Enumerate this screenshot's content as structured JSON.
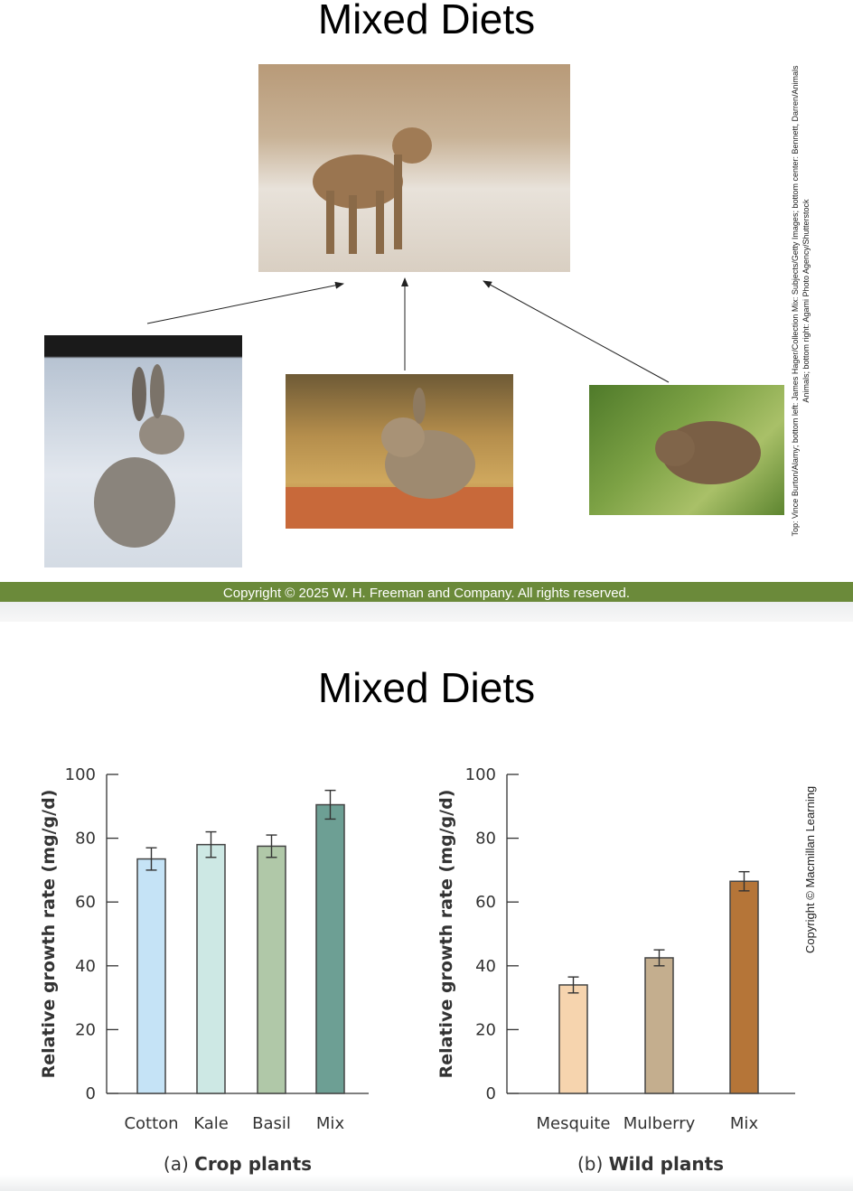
{
  "slide1": {
    "title": "Mixed Diets",
    "photo_credit": "Top: Vince Burton/Alamy; bottom left: James Hager/Collection Mix: Subjects/Getty Images; bottom center: Bennett, Darren/Animals Animals; bottom right: Agami Photo Agency/Shutterstock",
    "copyright": "Copyright © 2025 W. H. Freeman and Company. All rights reserved.",
    "photos": [
      "coyote",
      "jackrabbit",
      "cottontail-rabbit",
      "vole"
    ]
  },
  "slide2": {
    "title": "Mixed Diets",
    "side_copyright": "Copyright © Macmillan Learning"
  },
  "chart_data": [
    {
      "type": "bar",
      "title": "Crop plants",
      "panel": "(a)",
      "ylabel": "Relative growth rate (mg/g/d)",
      "ylim": [
        0,
        100
      ],
      "yticks": [
        0,
        20,
        40,
        60,
        80,
        100
      ],
      "categories": [
        "Cotton",
        "Kale",
        "Basil",
        "Mix"
      ],
      "values": [
        73.5,
        78,
        77.5,
        90.5
      ],
      "errors": [
        3.5,
        4,
        3.5,
        4.5
      ],
      "colors": [
        "#c5e3f6",
        "#cde8e4",
        "#b0c8a8",
        "#6d9f94"
      ]
    },
    {
      "type": "bar",
      "title": "Wild plants",
      "panel": "(b)",
      "ylabel": "Relative growth rate (mg/g/d)",
      "ylim": [
        0,
        100
      ],
      "yticks": [
        0,
        20,
        40,
        60,
        80,
        100
      ],
      "categories": [
        "Mesquite",
        "Mulberry",
        "Mix"
      ],
      "values": [
        34,
        42.5,
        66.5
      ],
      "errors": [
        2.5,
        2.5,
        3
      ],
      "colors": [
        "#f6d4ae",
        "#c4ae8e",
        "#b57538"
      ]
    }
  ]
}
